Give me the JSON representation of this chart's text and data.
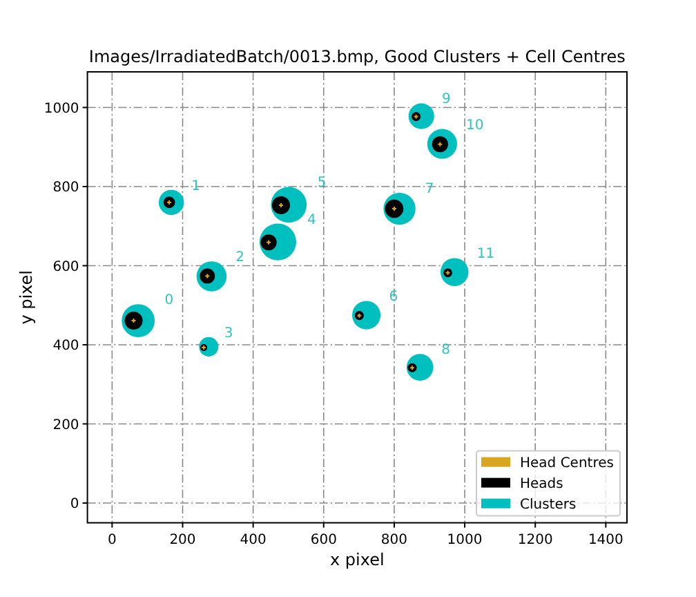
{
  "chart_data": {
    "type": "bubble",
    "title": "Images/IrradiatedBatch/0013.bmp, Good Clusters + Cell Centres",
    "xlabel": "x pixel",
    "ylabel": "y pixel",
    "xlim": [
      -70,
      1460
    ],
    "ylim": [
      -50,
      1090
    ],
    "xticks": [
      0,
      200,
      400,
      600,
      800,
      1000,
      1200,
      1400
    ],
    "yticks": [
      0,
      200,
      400,
      600,
      800,
      1000
    ],
    "grid": true,
    "legend": "bottom right",
    "series": [
      {
        "name": "Head Centres",
        "type": "scatter",
        "marker": "cross",
        "color": "#daa520",
        "x": [
          61,
          162,
          270,
          260,
          444,
          479,
          701,
          800,
          851,
          862,
          930,
          952
        ],
        "values": [
          461,
          760,
          574,
          393,
          659,
          753,
          474,
          744,
          342,
          977,
          907,
          582
        ]
      },
      {
        "name": "Heads",
        "color": "#000000",
        "x": [
          61,
          162,
          270,
          260,
          444,
          479,
          701,
          800,
          851,
          862,
          930,
          952
        ],
        "values": [
          461,
          760,
          574,
          393,
          659,
          753,
          474,
          744,
          342,
          977,
          907,
          582
        ],
        "sizes": [
          0.24,
          0.1,
          0.17,
          0.035,
          0.19,
          0.24,
          0.06,
          0.25,
          0.06,
          0.06,
          0.19,
          0.057
        ]
      },
      {
        "name": "Clusters",
        "color": "#00bfbf",
        "x": [
          74,
          168,
          282,
          274,
          470,
          501,
          721,
          815,
          873,
          877,
          936,
          971
        ],
        "values": [
          461,
          760,
          573,
          395,
          660,
          754,
          475,
          744,
          343,
          978,
          908,
          584
        ],
        "sizes": [
          0.81,
          0.47,
          0.67,
          0.28,
          1,
          0.95,
          0.6,
          0.76,
          0.53,
          0.49,
          0.66,
          0.58
        ]
      }
    ],
    "annotations": [
      {
        "text": "0",
        "x": 74,
        "y": 461
      },
      {
        "text": "1",
        "x": 168,
        "y": 760
      },
      {
        "text": "2",
        "x": 282,
        "y": 573
      },
      {
        "text": "3",
        "x": 274,
        "y": 395
      },
      {
        "text": "4",
        "x": 470,
        "y": 660
      },
      {
        "text": "5",
        "x": 501,
        "y": 754
      },
      {
        "text": "6",
        "x": 721,
        "y": 475
      },
      {
        "text": "7",
        "x": 815,
        "y": 744
      },
      {
        "text": "8",
        "x": 873,
        "y": 343
      },
      {
        "text": "9",
        "x": 877,
        "y": 978
      },
      {
        "text": "10",
        "x": 936,
        "y": 908
      },
      {
        "text": "11",
        "x": 971,
        "y": 584
      }
    ]
  }
}
